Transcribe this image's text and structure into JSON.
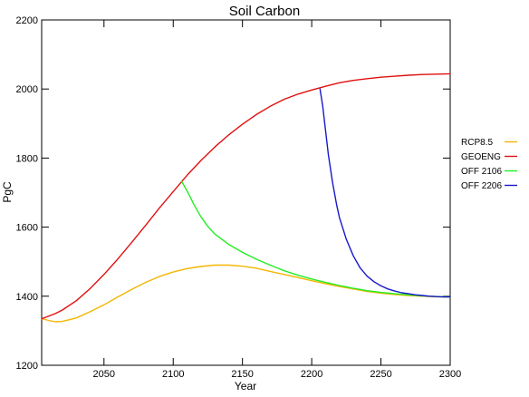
{
  "chart_data": {
    "type": "line",
    "title": "Soil Carbon",
    "xlabel": "Year",
    "ylabel": "PgC",
    "xlim": [
      2005,
      2300
    ],
    "ylim": [
      1200,
      2200
    ],
    "x_ticks": [
      2050,
      2100,
      2150,
      2200,
      2250,
      2300
    ],
    "y_ticks": [
      1200,
      1400,
      1600,
      1800,
      2000,
      2200
    ],
    "legend_position": "right",
    "grid": false,
    "series": [
      {
        "name": "RCP8.5",
        "color": "#f2b600",
        "x": [
          2005,
          2010,
          2015,
          2020,
          2030,
          2040,
          2050,
          2060,
          2070,
          2080,
          2090,
          2100,
          2110,
          2120,
          2130,
          2140,
          2150,
          2160,
          2170,
          2180,
          2190,
          2200,
          2210,
          2220,
          2230,
          2240,
          2250,
          2260,
          2270,
          2280,
          2290,
          2300
        ],
        "values": [
          1335,
          1330,
          1326,
          1327,
          1337,
          1355,
          1375,
          1398,
          1420,
          1440,
          1457,
          1470,
          1480,
          1486,
          1490,
          1490,
          1487,
          1481,
          1472,
          1463,
          1454,
          1445,
          1436,
          1428,
          1421,
          1414,
          1409,
          1405,
          1402,
          1400,
          1398,
          1398
        ]
      },
      {
        "name": "GEOENG",
        "color": "#e01010",
        "x": [
          2005,
          2010,
          2015,
          2020,
          2030,
          2040,
          2050,
          2060,
          2070,
          2080,
          2090,
          2100,
          2110,
          2120,
          2130,
          2140,
          2150,
          2160,
          2170,
          2180,
          2190,
          2200,
          2210,
          2220,
          2230,
          2240,
          2250,
          2260,
          2270,
          2280,
          2290,
          2300
        ],
        "values": [
          1335,
          1342,
          1350,
          1360,
          1387,
          1422,
          1463,
          1508,
          1556,
          1605,
          1655,
          1703,
          1750,
          1793,
          1832,
          1867,
          1898,
          1926,
          1950,
          1970,
          1985,
          1997,
          2008,
          2018,
          2025,
          2030,
          2034,
          2037,
          2040,
          2042,
          2043,
          2044
        ]
      },
      {
        "name": "OFF 2106",
        "color": "#22ee22",
        "x": [
          2106,
          2110,
          2115,
          2120,
          2125,
          2130,
          2140,
          2150,
          2160,
          2170,
          2180,
          2190,
          2200,
          2210,
          2220,
          2230,
          2240,
          2250,
          2260,
          2270,
          2280,
          2290,
          2300
        ],
        "values": [
          1733,
          1705,
          1665,
          1630,
          1602,
          1580,
          1550,
          1527,
          1507,
          1490,
          1474,
          1461,
          1450,
          1440,
          1431,
          1423,
          1416,
          1411,
          1407,
          1404,
          1401,
          1399,
          1398
        ]
      },
      {
        "name": "OFF 2206",
        "color": "#1818cc",
        "x": [
          2206,
          2208,
          2210,
          2212,
          2215,
          2218,
          2220,
          2225,
          2230,
          2235,
          2240,
          2245,
          2250,
          2255,
          2260,
          2265,
          2270,
          2275,
          2280,
          2285,
          2290,
          2295,
          2300
        ],
        "values": [
          2000,
          1950,
          1880,
          1810,
          1730,
          1665,
          1628,
          1565,
          1517,
          1482,
          1458,
          1442,
          1430,
          1421,
          1415,
          1410,
          1407,
          1404,
          1402,
          1400,
          1399,
          1398,
          1398
        ]
      }
    ]
  }
}
